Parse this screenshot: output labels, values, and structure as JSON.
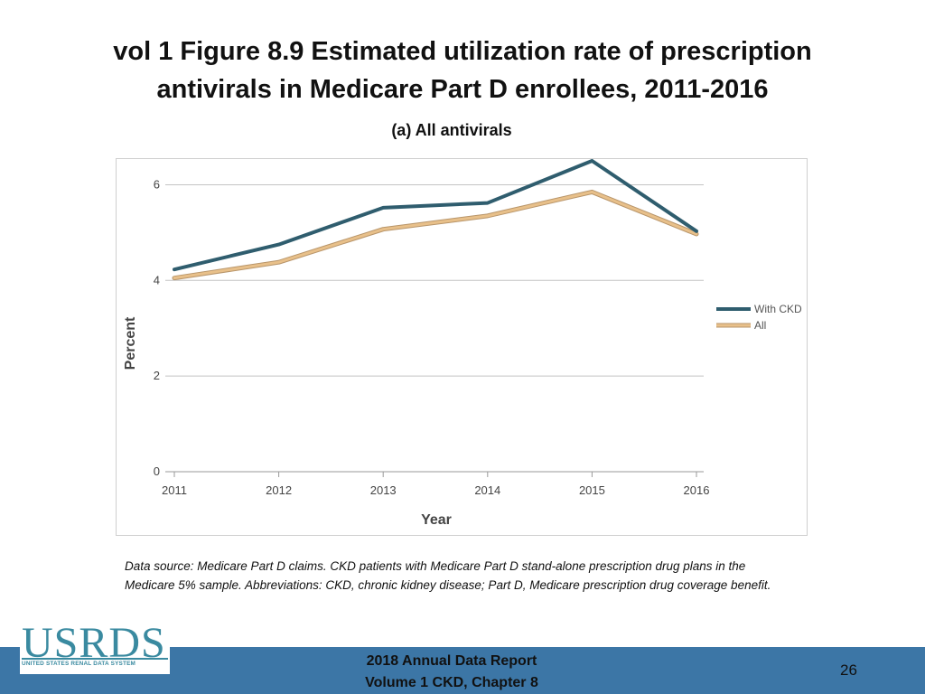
{
  "slide": {
    "title_line1": "vol 1 Figure 8.9 Estimated utilization rate of prescription",
    "title_line2": "antivirals in Medicare Part D enrollees, 2011-2016",
    "subtitle": "(a) All antivirals"
  },
  "source_note": "Data source: Medicare Part D claims. CKD patients with Medicare Part D stand-alone prescription drug plans in the Medicare 5% sample. Abbreviations: CKD, chronic kidney disease; Part D, Medicare prescription drug coverage benefit.",
  "footer": {
    "logo_text": "USRDS",
    "logo_subtext": "UNITED STATES RENAL DATA SYSTEM",
    "report_line1": "2018 Annual Data Report",
    "report_line2": "Volume 1 CKD, Chapter 8",
    "page_number": "26"
  },
  "colors": {
    "with_ckd": "#2f5d6e",
    "all": "#e8c08a",
    "footer_bar": "#3c76a6",
    "brand": "#3a8aa0"
  },
  "chart_data": {
    "type": "line",
    "title": "",
    "xlabel": "Year",
    "ylabel": "Percent",
    "x": [
      "2011",
      "2012",
      "2013",
      "2014",
      "2015",
      "2016"
    ],
    "yticks": [
      "0",
      "2",
      "4",
      "6"
    ],
    "ylim": [
      0,
      6.5
    ],
    "grid": true,
    "legend_position": "right",
    "series": [
      {
        "name": "With CKD",
        "values": [
          4.23,
          4.75,
          5.52,
          5.62,
          6.5,
          5.03
        ]
      },
      {
        "name": "All",
        "values": [
          4.05,
          4.38,
          5.07,
          5.35,
          5.85,
          4.97
        ]
      }
    ]
  }
}
